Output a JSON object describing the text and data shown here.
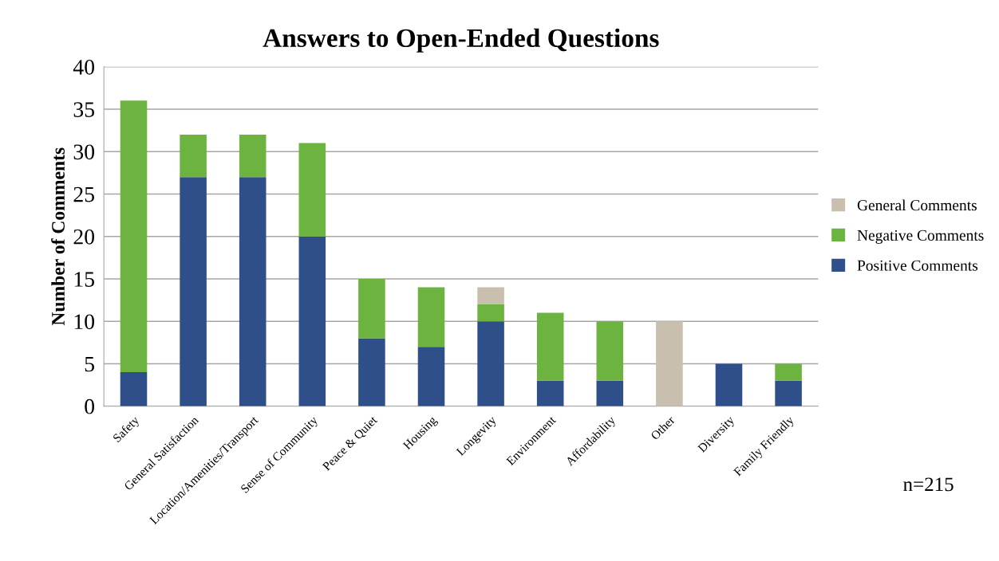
{
  "chart_data": {
    "type": "bar",
    "stacked": true,
    "title": "Answers to Open-Ended Questions",
    "ylabel": "Number of Comments",
    "categories": [
      "Safety",
      "General Satisfaction",
      "Location/Amenities/Transport",
      "Sense of Community",
      "Peace & Quiet",
      "Housing",
      "Longevity",
      "Environment",
      "Affordability",
      "Other",
      "Diversity",
      "Family Friendly"
    ],
    "series": [
      {
        "name": "Positive Comments",
        "color": "#2f4f8a",
        "values": [
          4,
          27,
          27,
          20,
          8,
          7,
          10,
          3,
          3,
          null,
          5,
          3
        ]
      },
      {
        "name": "Negative Comments",
        "color": "#6db33f",
        "values": [
          32,
          5,
          5,
          11,
          7,
          7,
          2,
          8,
          7,
          null,
          null,
          2
        ]
      },
      {
        "name": "General Comments",
        "color": "#c8bfae",
        "values": [
          null,
          null,
          null,
          null,
          null,
          null,
          2,
          null,
          null,
          10,
          null,
          null
        ]
      }
    ],
    "ylim": [
      0,
      40
    ],
    "yticks": [
      0,
      5,
      10,
      15,
      20,
      25,
      30,
      35,
      40
    ],
    "grid": "y",
    "legend": "right",
    "annotations": [
      "n=215"
    ]
  }
}
